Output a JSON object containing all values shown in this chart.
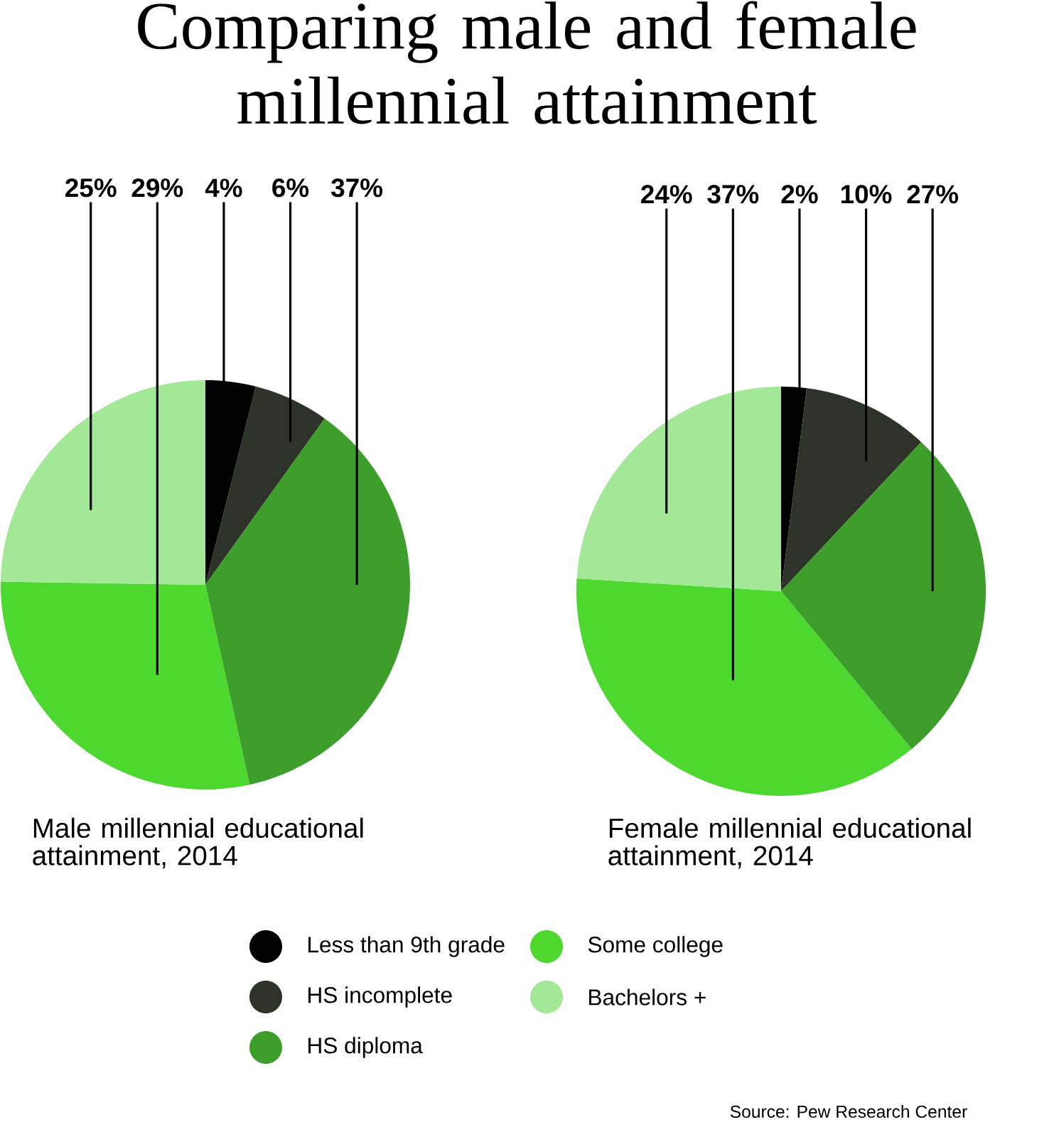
{
  "chart_data": [
    {
      "type": "pie",
      "title": "Comparing male and female millennial attainment",
      "subtitle": "Male millennial educational attainment, 2014",
      "categories": [
        "Less than 9th grade",
        "HS incomplete",
        "HS diploma",
        "Some college",
        "Bachelors +"
      ],
      "values": [
        4,
        6,
        37,
        29,
        25
      ],
      "value_labels": [
        "4%",
        "6%",
        "37%",
        "29%",
        "25%"
      ],
      "colors": [
        "#000000",
        "#2e3329",
        "#3e9e2b",
        "#4cd82e",
        "#a3e896"
      ],
      "legend": "bottom"
    },
    {
      "type": "pie",
      "subtitle": "Female millennial educational attainment, 2014",
      "categories": [
        null,
        null,
        null,
        null,
        null
      ],
      "values": [
        2,
        10,
        27,
        37,
        24
      ],
      "value_labels": [
        "2%",
        "10%",
        "27%",
        "37%",
        "24%"
      ],
      "colors": [
        "#000000",
        "#2e3329",
        "#3e9e2b",
        "#4cd82e",
        "#a3e896"
      ],
      "annotations": [
        "Source: Pew Research Center"
      ]
    }
  ]
}
